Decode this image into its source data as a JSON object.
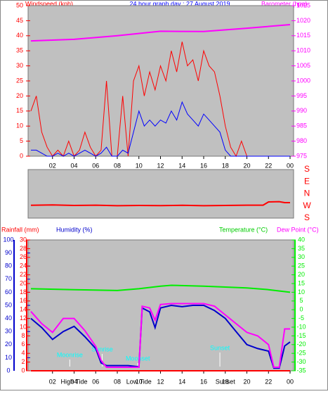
{
  "chart_data": [
    {
      "type": "line",
      "title": "24 hour graph day : 27 August 2019",
      "y_label": "Windspeed (kph)",
      "y2_label": "Barometer (hpa)",
      "xlim": [
        0,
        24
      ],
      "xticks": [
        {
          "value": 2,
          "label": "02"
        },
        {
          "value": 4,
          "label": "04"
        },
        {
          "value": 6,
          "label": "06"
        },
        {
          "value": 8,
          "label": "08"
        },
        10,
        12,
        14,
        16,
        18,
        20,
        22,
        {
          "value": 24,
          "label": "00"
        }
      ],
      "ylim": [
        0,
        50
      ],
      "yticks": [
        0,
        5,
        10,
        15,
        20,
        25,
        30,
        35,
        40,
        45,
        50
      ],
      "y2lim": [
        975,
        1025
      ],
      "y2ticks": [
        975,
        980,
        985,
        990,
        995,
        1000,
        1005,
        1010,
        1015,
        1020,
        1025
      ],
      "series": [
        {
          "color": "#ff0000",
          "x": [
            0,
            0.5,
            1,
            1.5,
            2,
            2.5,
            3,
            3.5,
            4,
            4.5,
            5,
            5.5,
            6,
            6.5,
            7,
            7.5,
            8,
            8.5,
            9,
            9.5,
            10,
            10.5,
            11,
            11.5,
            12,
            12.5,
            13,
            13.5,
            14,
            14.5,
            15,
            15.5,
            16,
            16.5,
            17,
            17.5,
            18,
            18.5,
            19,
            19.5,
            20,
            20.5,
            21,
            21.5,
            22,
            22.5,
            23,
            23.5,
            24
          ],
          "values": [
            15,
            20,
            8,
            3,
            0,
            2,
            0,
            5,
            0,
            2,
            8,
            3,
            0,
            2,
            25,
            0,
            0,
            20,
            0,
            25,
            30,
            20,
            28,
            22,
            30,
            25,
            35,
            28,
            38,
            30,
            32,
            25,
            35,
            30,
            28,
            20,
            10,
            3,
            0,
            5,
            0,
            0,
            0,
            0,
            0,
            0,
            0,
            0,
            0
          ]
        },
        {
          "color": "#0000ff",
          "x": [
            0,
            0.5,
            1,
            1.5,
            2,
            2.5,
            3,
            3.5,
            4,
            4.5,
            5,
            5.5,
            6,
            6.5,
            7,
            7.5,
            8,
            8.5,
            9,
            9.5,
            10,
            10.5,
            11,
            11.5,
            12,
            12.5,
            13,
            13.5,
            14,
            14.5,
            15,
            15.5,
            16,
            16.5,
            17,
            17.5,
            18,
            18.5,
            19,
            19.5,
            20,
            20.5,
            21,
            21.5,
            22,
            22.5,
            23,
            23.5,
            24
          ],
          "values": [
            2,
            2,
            1,
            0,
            0,
            1,
            0,
            1,
            0,
            1,
            2,
            1,
            0,
            1,
            3,
            0,
            0,
            2,
            1,
            8,
            15,
            10,
            12,
            10,
            12,
            11,
            15,
            12,
            18,
            14,
            12,
            10,
            14,
            12,
            10,
            8,
            2,
            0,
            0,
            0,
            0,
            0,
            0,
            0,
            0,
            0,
            0,
            0,
            0
          ]
        },
        {
          "color": "#ff00ff",
          "axis": "y2",
          "x": [
            0,
            4,
            8,
            12,
            16,
            20,
            24
          ],
          "values": [
            1013.3,
            1013.8,
            1015,
            1016.5,
            1016.4,
            1017.5,
            1018.7
          ]
        }
      ]
    },
    {
      "type": "line",
      "xlim": [
        0,
        24
      ],
      "ylim": [
        -180,
        180
      ],
      "yticks": [
        {
          "value": 180,
          "label": "S"
        },
        {
          "value": 90,
          "label": "E"
        },
        {
          "value": 0,
          "label": "N"
        },
        {
          "value": -90,
          "label": "W"
        },
        {
          "value": -180,
          "label": "S"
        }
      ],
      "series": [
        {
          "color": "#ff0000",
          "x": [
            0,
            2,
            4,
            6,
            8,
            10,
            12,
            14,
            16,
            18,
            20,
            21.5,
            22,
            23,
            23.5,
            24
          ],
          "values": [
            -85,
            -82,
            -86,
            -84,
            -88,
            -86,
            -87,
            -85,
            -88,
            -86,
            -84,
            -84,
            -60,
            -58,
            -65,
            -65
          ]
        }
      ]
    },
    {
      "type": "line",
      "xlim": [
        0,
        24
      ],
      "xticks": [
        {
          "value": 2,
          "label": "02"
        },
        {
          "value": 4,
          "label": "04"
        },
        {
          "value": 6,
          "label": "06"
        },
        {
          "value": 8,
          "label": "08"
        },
        10,
        12,
        14,
        16,
        18,
        20,
        22,
        {
          "value": 24,
          "label": "00"
        }
      ],
      "ylim": [
        0,
        100
      ],
      "yticks": [
        0,
        10,
        20,
        30,
        40,
        50,
        60,
        70,
        80,
        90,
        100
      ],
      "y2lim": [
        -35,
        40
      ],
      "y2ticks": [
        -35,
        -30,
        -25,
        -20,
        -15,
        -10,
        -5,
        0,
        5,
        10,
        15,
        20,
        25,
        30,
        35,
        40
      ],
      "y3lim": [
        0,
        30
      ],
      "y3ticks": [
        0,
        2,
        4,
        6,
        8,
        10,
        12,
        14,
        16,
        18,
        20,
        22,
        24,
        26,
        28,
        30
      ],
      "series": [
        {
          "name": "Rainfall (mm)",
          "color": "#ff0000",
          "axis": "y3",
          "x": [
            0,
            24
          ],
          "values": [
            0,
            0
          ]
        },
        {
          "name": "Humidity (%)",
          "color": "#0000cc",
          "x": [
            0,
            1,
            2,
            3,
            4,
            5,
            6,
            6.5,
            7,
            8,
            9,
            10,
            10.3,
            11,
            11.5,
            12,
            13,
            14,
            15,
            16,
            17,
            18,
            19,
            20,
            21,
            22,
            22.5,
            23,
            23.5,
            24
          ],
          "values": [
            40,
            33,
            24,
            30,
            34,
            26,
            17,
            6,
            4,
            4,
            4,
            3,
            48,
            45,
            33,
            48,
            50,
            49,
            50,
            50,
            46,
            40,
            30,
            20,
            17,
            15,
            2,
            2,
            19,
            22
          ]
        },
        {
          "name": "Temperature (°C)",
          "color": "#00ee00",
          "axis": "y2",
          "x": [
            0,
            4,
            8,
            10,
            12,
            13,
            16,
            20,
            22,
            24
          ],
          "values": [
            12,
            11.5,
            11,
            12,
            13.5,
            14,
            13.5,
            12.5,
            11.5,
            10
          ]
        },
        {
          "name": "Dew Point (°C)",
          "color": "#ff00ff",
          "axis": "y2",
          "x": [
            0,
            1,
            2,
            3,
            4,
            5,
            6,
            6.5,
            7,
            8,
            9,
            10,
            10.3,
            11,
            11.5,
            12,
            13,
            14,
            15,
            16,
            17,
            18,
            19,
            20,
            21,
            22,
            22.5,
            23,
            23.5,
            24
          ],
          "values": [
            -1,
            -8,
            -13,
            -5,
            -5,
            -12,
            -21,
            -29,
            -33,
            -33,
            -33,
            -33,
            2,
            1,
            -6,
            3,
            3.5,
            3.5,
            3.5,
            3.5,
            2,
            -3,
            -8,
            -13,
            -15,
            -20,
            -33,
            -33,
            -11,
            -11
          ]
        }
      ],
      "annotations": [
        {
          "x": 3.6,
          "text": "Moonrise"
        },
        {
          "x": 6.6,
          "text": "Sunrise"
        },
        {
          "x": 9.9,
          "text": "Moonset"
        },
        {
          "x": 17.5,
          "text": "Sunset"
        }
      ],
      "events": [
        {
          "x": 4,
          "text": "High Tide"
        },
        {
          "x": 10,
          "text": "Low Tide"
        },
        {
          "x": 18,
          "text": "Sunset"
        }
      ]
    }
  ]
}
